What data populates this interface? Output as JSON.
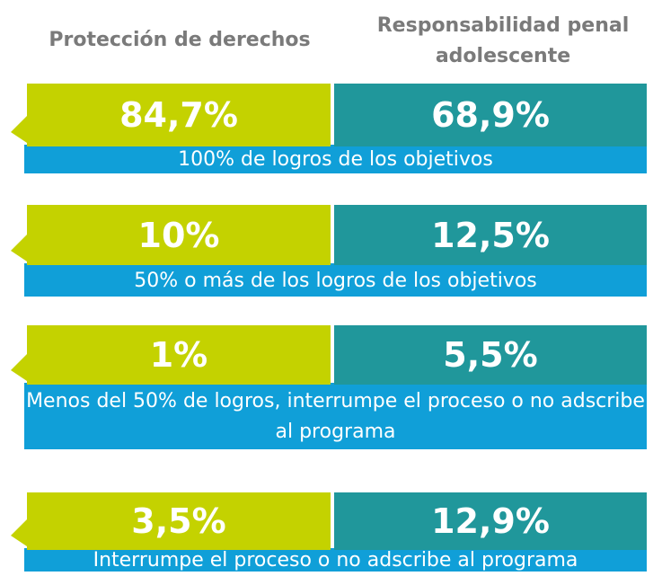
{
  "header": {
    "left": "Protección de derechos",
    "right": "Responsabilidad penal adolescente"
  },
  "rows": [
    {
      "left": "84,7%",
      "right": "68,9%",
      "label": "100% de logros de los objetivos"
    },
    {
      "left": "10%",
      "right": "12,5%",
      "label": "50% o más de los logros de los objetivos"
    },
    {
      "left": "1%",
      "right": "5,5%",
      "label": "Menos del 50% de logros, interrumpe el proceso o no adscribe al programa"
    },
    {
      "left": "3,5%",
      "right": "12,9%",
      "label": "Interrumpe el proceso o no adscribe al programa"
    }
  ]
}
